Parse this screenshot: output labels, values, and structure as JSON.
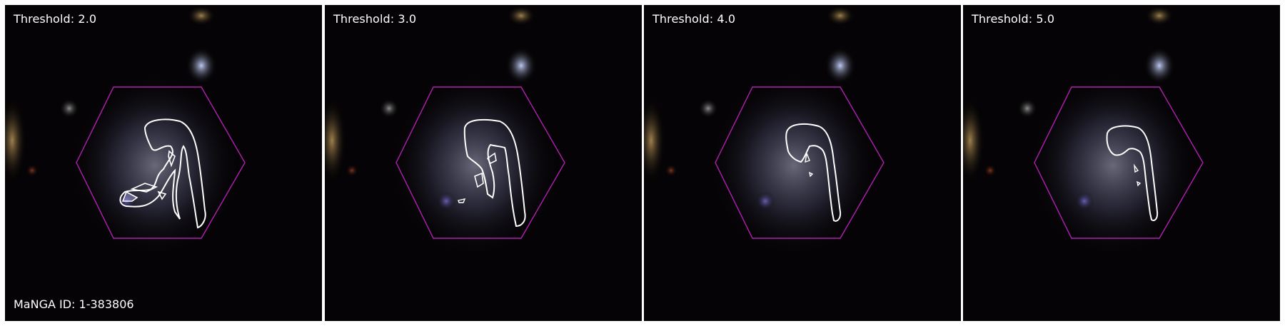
{
  "figure": {
    "panels": [
      {
        "threshold_label": "Threshold: 2.0",
        "threshold": 2.0
      },
      {
        "threshold_label": "Threshold: 3.0",
        "threshold": 3.0
      },
      {
        "threshold_label": "Threshold: 4.0",
        "threshold": 4.0
      },
      {
        "threshold_label": "Threshold: 5.0",
        "threshold": 5.0
      }
    ],
    "manga_id_label": "MaNGA ID: 1-383806",
    "colors": {
      "hexagon": "#b21fb2",
      "contour": "#ffffff",
      "background": "#050305"
    }
  }
}
